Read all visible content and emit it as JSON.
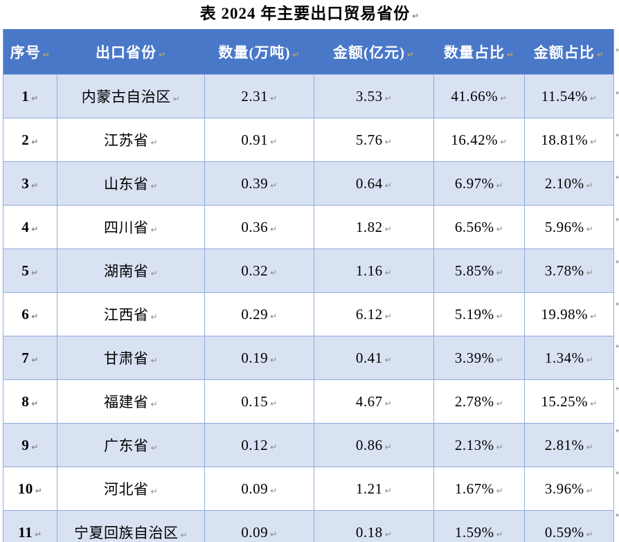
{
  "title": "表 2024 年主要出口贸易省份",
  "marks": {
    "char": "↵"
  },
  "colors": {
    "header_bg": "#4A78C8",
    "band_bg": "#D9E2F3",
    "border": "#8EAADC",
    "outer_bottom": "#7B9BD6",
    "header_mark": "#b5a264",
    "body_mark": "#8a8a8a"
  },
  "table": {
    "headers": [
      "序号",
      "出口省份",
      "数量(万吨)",
      "金额(亿元)",
      "数量占比",
      "金额占比"
    ],
    "rows": [
      [
        "1",
        "内蒙古自治区",
        "2.31",
        "3.53",
        "41.66%",
        "11.54%"
      ],
      [
        "2",
        "江苏省",
        "0.91",
        "5.76",
        "16.42%",
        "18.81%"
      ],
      [
        "3",
        "山东省",
        "0.39",
        "0.64",
        "6.97%",
        "2.10%"
      ],
      [
        "4",
        "四川省",
        "0.36",
        "1.82",
        "6.56%",
        "5.96%"
      ],
      [
        "5",
        "湖南省",
        "0.32",
        "1.16",
        "5.85%",
        "3.78%"
      ],
      [
        "6",
        "江西省",
        "0.29",
        "6.12",
        "5.19%",
        "19.98%"
      ],
      [
        "7",
        "甘肃省",
        "0.19",
        "0.41",
        "3.39%",
        "1.34%"
      ],
      [
        "8",
        "福建省",
        "0.15",
        "4.67",
        "2.78%",
        "15.25%"
      ],
      [
        "9",
        "广东省",
        "0.12",
        "0.86",
        "2.13%",
        "2.81%"
      ],
      [
        "10",
        "河北省",
        "0.09",
        "1.21",
        "1.67%",
        "3.96%"
      ],
      [
        "11",
        "宁夏回族自治区",
        "0.09",
        "0.18",
        "1.59%",
        "0.59%"
      ]
    ]
  }
}
